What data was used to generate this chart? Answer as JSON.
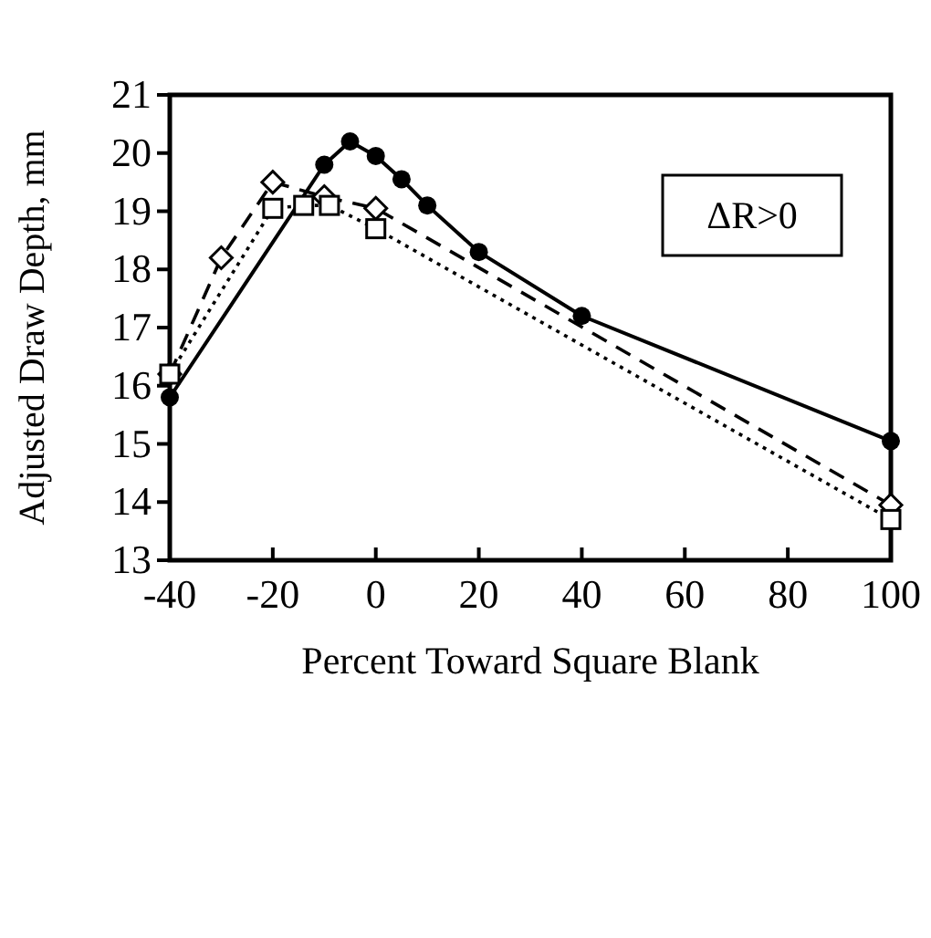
{
  "chart_data": {
    "type": "line",
    "xlabel": "Percent Toward Square Blank",
    "ylabel": "Adjusted Draw Depth, mm",
    "annotations": [
      "ΔR>0"
    ],
    "xlim": [
      -40,
      100
    ],
    "xticks": [
      -40,
      -20,
      0,
      20,
      40,
      60,
      80,
      100
    ],
    "ylim": [
      13,
      21
    ],
    "yticks": [
      13,
      14,
      15,
      16,
      17,
      18,
      19,
      20,
      21
    ],
    "grid": false,
    "series": [
      {
        "color": "#000000",
        "marker": "circle",
        "line_style": "solid",
        "x": [
          -40,
          -10,
          -5,
          0,
          5,
          10,
          20,
          40,
          100
        ],
        "values": [
          15.8,
          19.8,
          20.2,
          19.95,
          19.55,
          19.1,
          18.3,
          17.2,
          15.05
        ]
      },
      {
        "color": "#000000",
        "marker": "diamond",
        "line_style": "dashed",
        "x": [
          -40,
          -30,
          -20,
          -10,
          0,
          100
        ],
        "values": [
          16.2,
          18.2,
          19.5,
          19.25,
          19.05,
          13.95
        ]
      },
      {
        "color": "#000000",
        "marker": "square",
        "line_style": "dotted",
        "x": [
          -40,
          -20,
          -14,
          -9,
          0,
          100
        ],
        "values": [
          16.2,
          19.05,
          19.1,
          19.1,
          18.7,
          13.7
        ]
      }
    ]
  }
}
